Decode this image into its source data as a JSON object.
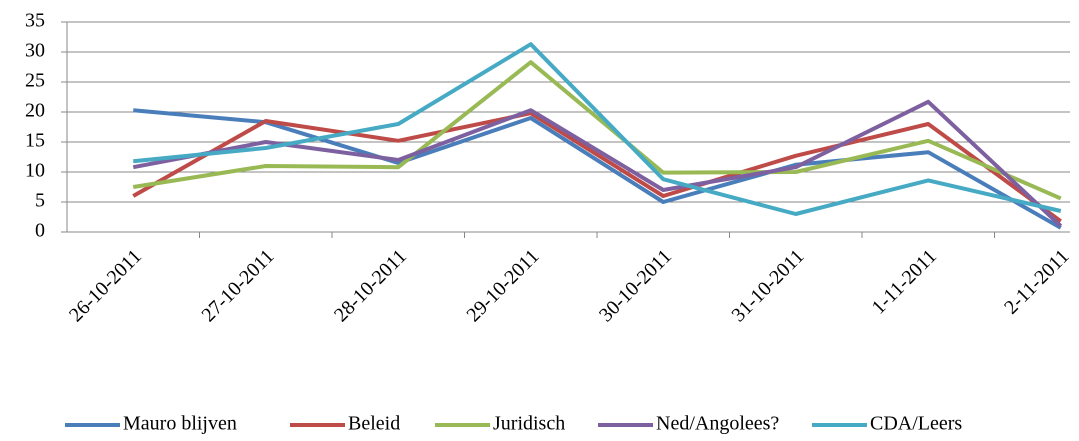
{
  "chart_data": {
    "type": "line",
    "categories": [
      "26-10-2011",
      "27-10-2011",
      "28-10-2011",
      "29-10-2011",
      "30-10-2011",
      "31-10-2011",
      "1-11-2011",
      "2-11-2011"
    ],
    "series": [
      {
        "name": "Mauro blijven",
        "color": "#4a7ebb",
        "values": [
          20.3,
          18.3,
          11.5,
          19,
          5,
          11.2,
          13.3,
          0.7
        ]
      },
      {
        "name": "Beleid",
        "color": "#be4b48",
        "values": [
          6,
          18.5,
          15.2,
          19.8,
          6,
          12.7,
          18,
          1.8
        ]
      },
      {
        "name": "Juridisch",
        "color": "#98b954",
        "values": [
          7.5,
          11,
          10.8,
          28.3,
          9.9,
          10,
          15.2,
          5.6
        ]
      },
      {
        "name": "Ned/Angolees?",
        "color": "#7d60a0",
        "values": [
          10.8,
          15,
          12,
          20.3,
          7,
          10.8,
          21.7,
          1
        ]
      },
      {
        "name": "CDA/Leers",
        "color": "#46aac5",
        "values": [
          11.8,
          14,
          18,
          31.3,
          8.8,
          3,
          8.6,
          3.5
        ]
      }
    ],
    "ylim": [
      0,
      35
    ],
    "yticks": [
      0,
      5,
      10,
      15,
      20,
      25,
      30,
      35
    ],
    "grid": true,
    "legend": "bottom"
  }
}
